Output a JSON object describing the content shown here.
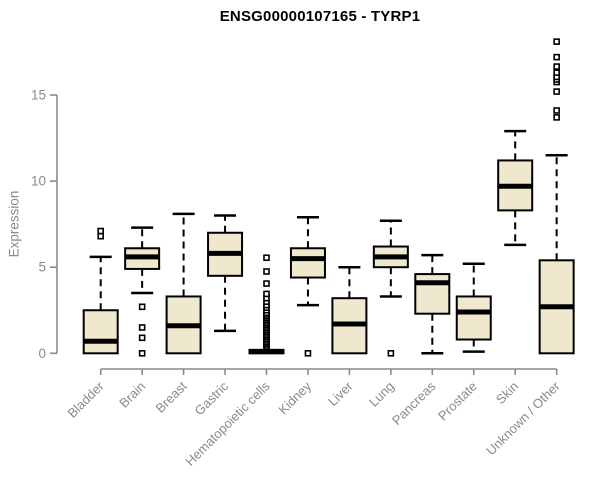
{
  "chart_data": {
    "type": "box",
    "title": "ENSG00000107165 - TYRP1",
    "ylabel": "Expression",
    "xlabel": "",
    "yticks": [
      0,
      5,
      10,
      15
    ],
    "ylim": [
      0,
      18.5
    ],
    "grid": false,
    "legend": false,
    "categories": [
      "Bladder",
      "Brain",
      "Breast",
      "Gastric",
      "Hematopoietic cells",
      "Kidney",
      "Liver",
      "Lung",
      "Pancreas",
      "Prostate",
      "Skin",
      "Unknown / Other"
    ],
    "series": [
      {
        "label": "Bladder",
        "whisker_low": 0,
        "q1": 0,
        "median": 0.7,
        "q3": 2.5,
        "whisker_high": 5.6,
        "outliers": [
          6.8,
          7.1
        ]
      },
      {
        "label": "Brain",
        "whisker_low": 3.5,
        "q1": 4.9,
        "median": 5.6,
        "q3": 6.1,
        "whisker_high": 7.3,
        "outliers": [
          2.7,
          1.5,
          0.9,
          0
        ]
      },
      {
        "label": "Breast",
        "whisker_low": 0,
        "q1": 0,
        "median": 1.6,
        "q3": 3.3,
        "whisker_high": 8.1,
        "outliers": []
      },
      {
        "label": "Gastric",
        "whisker_low": 1.3,
        "q1": 4.5,
        "median": 5.8,
        "q3": 7.0,
        "whisker_high": 8.0,
        "outliers": []
      },
      {
        "label": "Hematopoietic cells",
        "whisker_low": 0,
        "q1": 0,
        "median": 0.1,
        "q3": 0.2,
        "whisker_high": 0.2,
        "outliers": [
          0.35,
          0.45,
          0.55,
          0.65,
          0.75,
          0.85,
          0.95,
          1.05,
          1.15,
          1.25,
          1.35,
          1.45,
          1.55,
          1.65,
          1.75,
          1.85,
          1.95,
          2.05,
          2.15,
          2.25,
          2.35,
          2.5,
          2.65,
          2.8,
          3.0,
          3.2,
          3.45,
          4.05,
          4.75,
          5.55
        ]
      },
      {
        "label": "Kidney",
        "whisker_low": 2.8,
        "q1": 4.4,
        "median": 5.5,
        "q3": 6.1,
        "whisker_high": 7.9,
        "outliers": [
          0
        ]
      },
      {
        "label": "Liver",
        "whisker_low": 0,
        "q1": 0,
        "median": 1.7,
        "q3": 3.2,
        "whisker_high": 5.0,
        "outliers": []
      },
      {
        "label": "Lung",
        "whisker_low": 3.3,
        "q1": 5.0,
        "median": 5.6,
        "q3": 6.2,
        "whisker_high": 7.7,
        "outliers": [
          0
        ]
      },
      {
        "label": "Pancreas",
        "whisker_low": 0,
        "q1": 2.3,
        "median": 4.1,
        "q3": 4.6,
        "whisker_high": 5.7,
        "outliers": []
      },
      {
        "label": "Prostate",
        "whisker_low": 0.1,
        "q1": 0.8,
        "median": 2.4,
        "q3": 3.3,
        "whisker_high": 5.2,
        "outliers": []
      },
      {
        "label": "Skin",
        "whisker_low": 6.3,
        "q1": 8.3,
        "median": 9.7,
        "q3": 11.2,
        "whisker_high": 12.9,
        "outliers": []
      },
      {
        "label": "Unknown / Other",
        "whisker_low": 0,
        "q1": 0,
        "median": 2.7,
        "q3": 5.4,
        "whisker_high": 11.5,
        "outliers": [
          13.7,
          14.1,
          15.2,
          15.75,
          15.9,
          16.05,
          16.3,
          16.65,
          17.2,
          18.1
        ]
      }
    ],
    "colors": {
      "box_fill": "#EFE8CE",
      "box_stroke": "#000000",
      "median": "#000000",
      "whisker": "#000000",
      "outlier_stroke": "#000000",
      "outlier_fill": "#ffffff",
      "axis": "#8a8a8a",
      "tick_label": "#8a8a8a",
      "title": "#000000"
    }
  }
}
